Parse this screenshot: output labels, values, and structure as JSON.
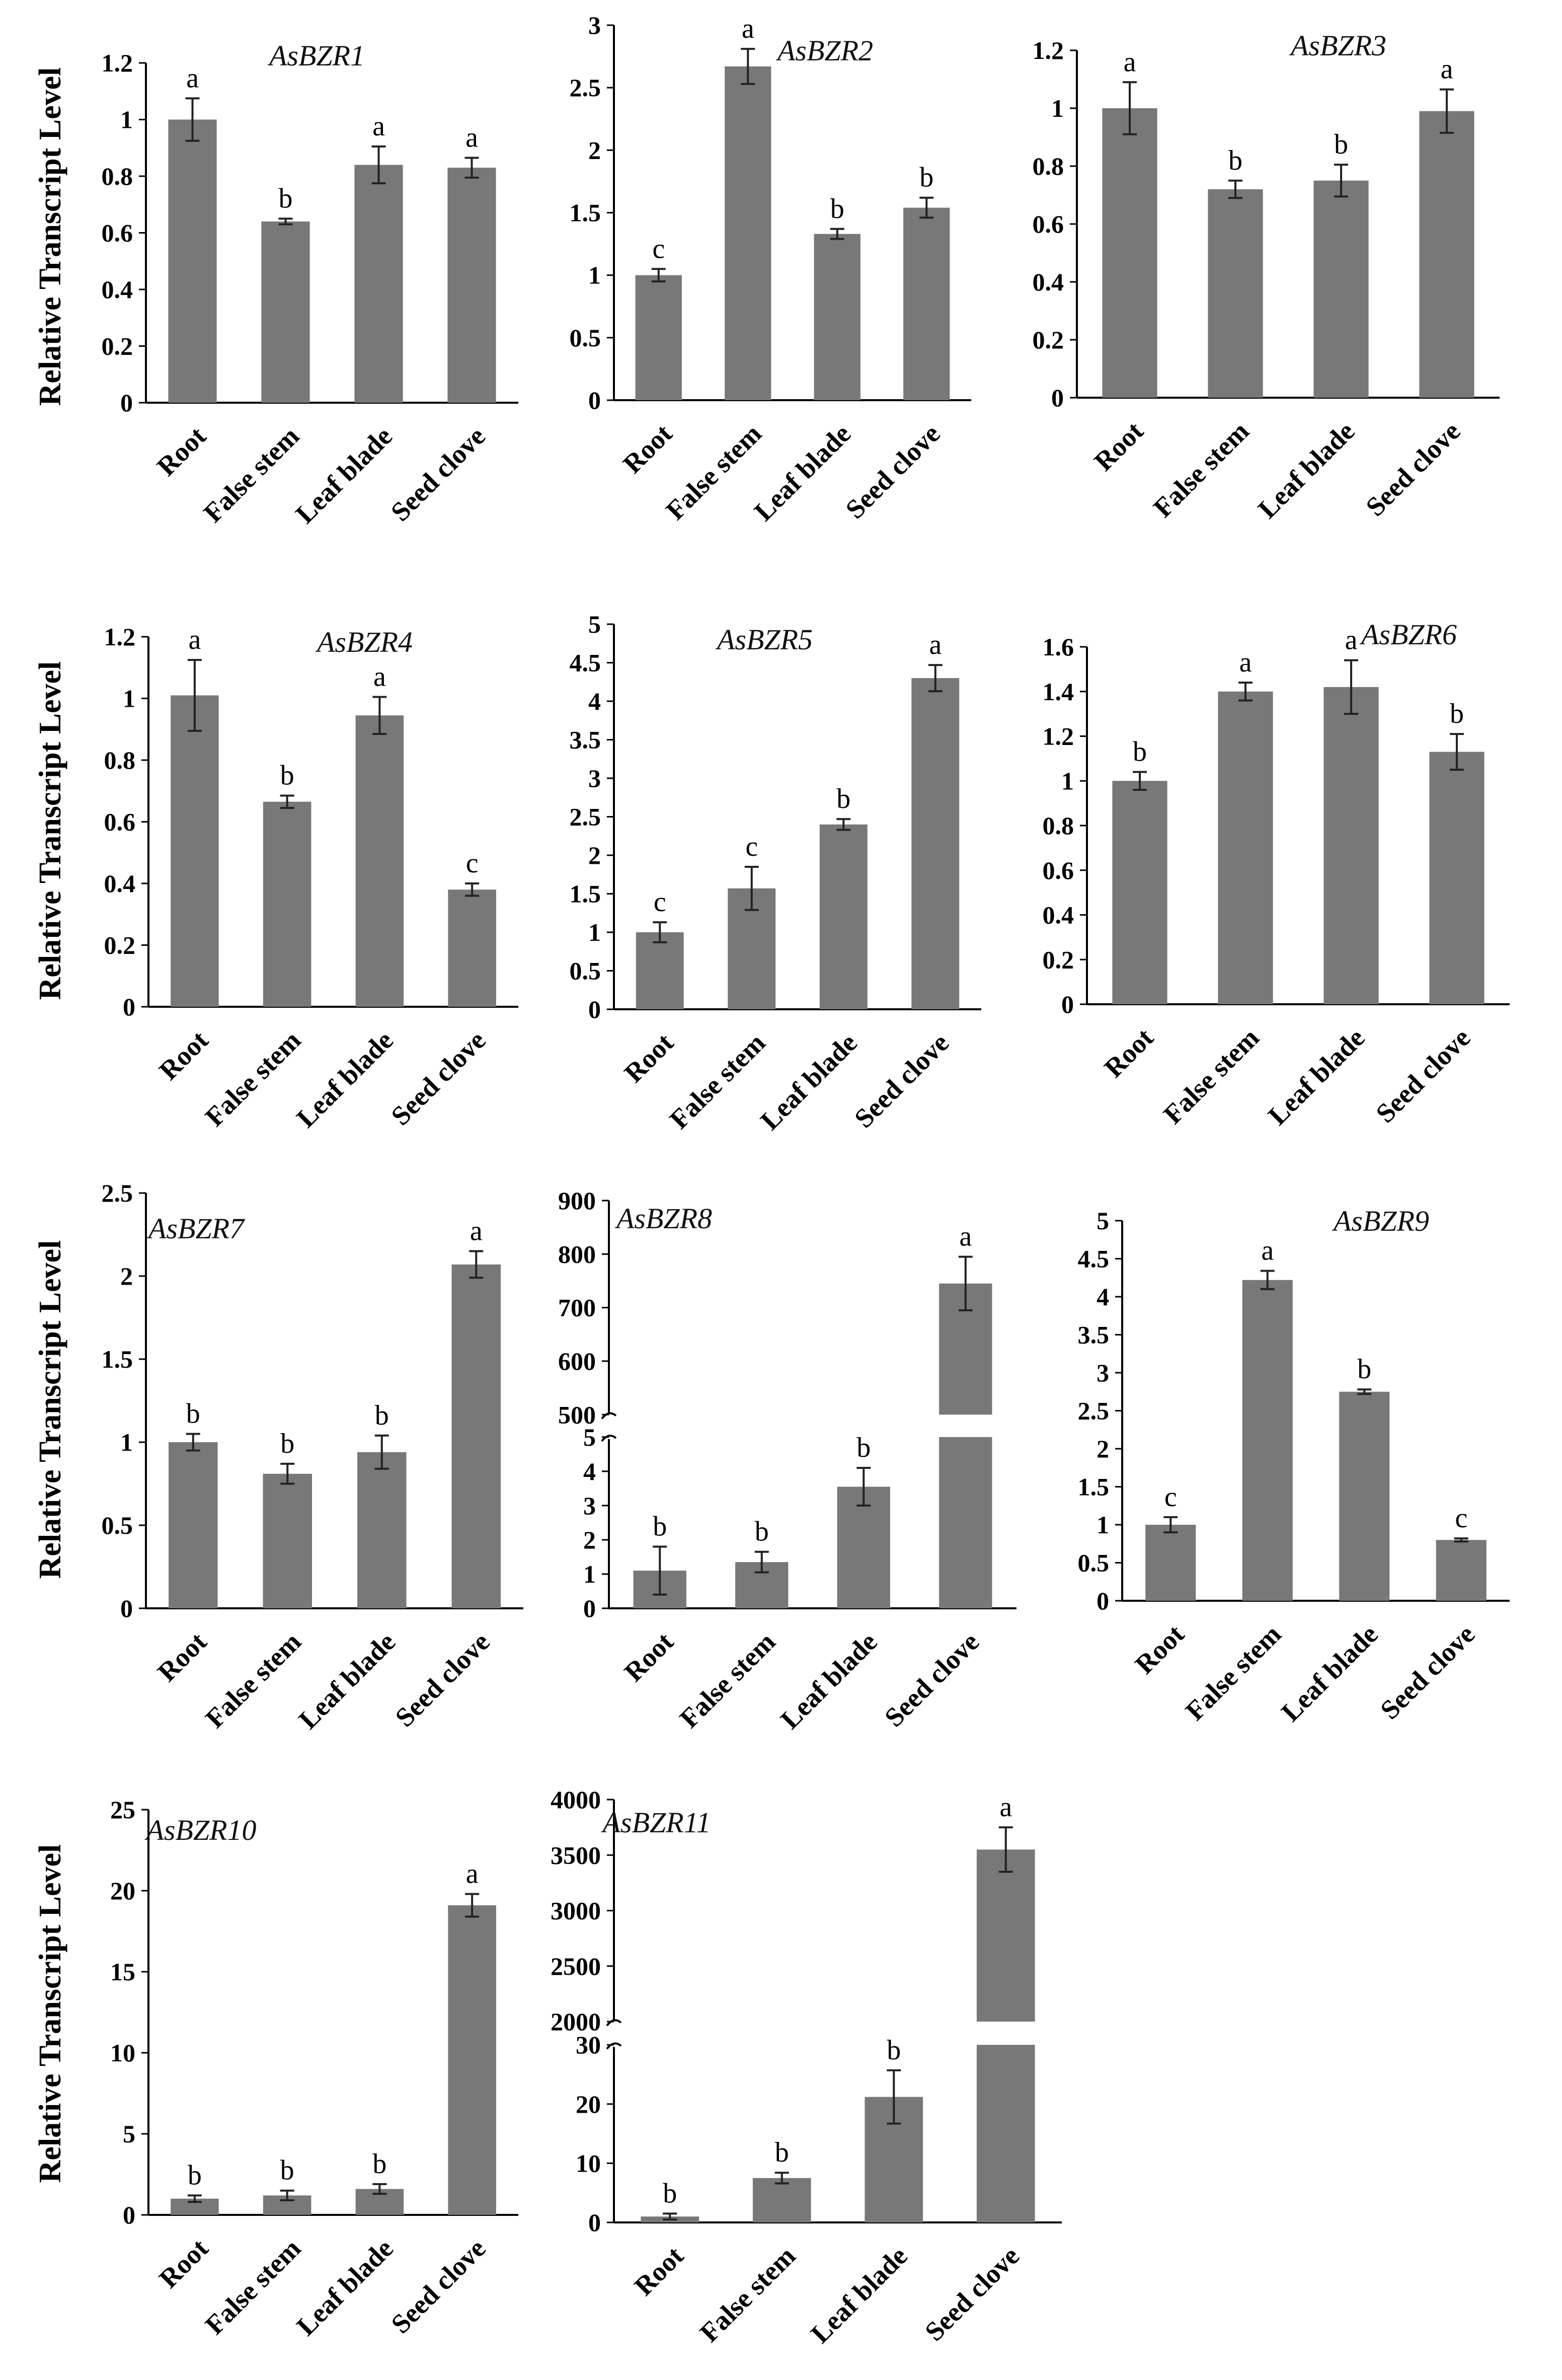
{
  "figure": {
    "y_axis_title": "Relative Transcript Level"
  },
  "chart_data": [
    {
      "type": "bar",
      "title": "AsBZR1",
      "categories": [
        "Root",
        "False stem",
        "Leaf blade",
        "Seed clove"
      ],
      "values": [
        1.0,
        0.64,
        0.84,
        0.83
      ],
      "errors": [
        0.075,
        0.01,
        0.065,
        0.035
      ],
      "significance": [
        "a",
        "b",
        "a",
        "a"
      ],
      "ylim": [
        0,
        1.2
      ],
      "yticks": [
        0,
        0.2,
        0.4,
        0.6,
        0.8,
        1,
        1.2
      ],
      "ytick_labels": [
        "0",
        "0.2",
        "0.4",
        "0.6",
        "0.8",
        "1",
        "1.2"
      ],
      "ylabel": "Relative Transcript Level"
    },
    {
      "type": "bar",
      "title": "AsBZR2",
      "categories": [
        "Root",
        "False stem",
        "Leaf blade",
        "Seed clove"
      ],
      "values": [
        1.0,
        2.67,
        1.33,
        1.54
      ],
      "errors": [
        0.05,
        0.14,
        0.04,
        0.08
      ],
      "significance": [
        "c",
        "a",
        "b",
        "b"
      ],
      "ylim": [
        0,
        3
      ],
      "yticks": [
        0,
        0.5,
        1,
        1.5,
        2,
        2.5,
        3
      ],
      "ytick_labels": [
        "0",
        "0.5",
        "1",
        "1.5",
        "2",
        "2.5",
        "3"
      ],
      "ylabel": ""
    },
    {
      "type": "bar",
      "title": "AsBZR3",
      "categories": [
        "Root",
        "False stem",
        "Leaf blade",
        "Seed clove"
      ],
      "values": [
        1.0,
        0.72,
        0.75,
        0.99
      ],
      "errors": [
        0.09,
        0.03,
        0.055,
        0.075
      ],
      "significance": [
        "a",
        "b",
        "b",
        "a"
      ],
      "ylim": [
        0,
        1.2
      ],
      "yticks": [
        0,
        0.2,
        0.4,
        0.6,
        0.8,
        1,
        1.2
      ],
      "ytick_labels": [
        "0",
        "0.2",
        "0.4",
        "0.6",
        "0.8",
        "1",
        "1.2"
      ],
      "ylabel": ""
    },
    {
      "type": "bar",
      "title": "AsBZR4",
      "categories": [
        "Root",
        "False stem",
        "Leaf blade",
        "Seed clove"
      ],
      "values": [
        1.01,
        0.665,
        0.945,
        0.38
      ],
      "errors": [
        0.115,
        0.02,
        0.06,
        0.02
      ],
      "significance": [
        "a",
        "b",
        "a",
        "c"
      ],
      "ylim": [
        0,
        1.2
      ],
      "yticks": [
        0,
        0.2,
        0.4,
        0.6,
        0.8,
        1,
        1.2
      ],
      "ytick_labels": [
        "0",
        "0.2",
        "0.4",
        "0.6",
        "0.8",
        "1",
        "1.2"
      ],
      "ylabel": "Relative Transcript Level"
    },
    {
      "type": "bar",
      "title": "AsBZR5",
      "categories": [
        "Root",
        "False stem",
        "Leaf blade",
        "Seed clove"
      ],
      "values": [
        1.0,
        1.57,
        2.4,
        4.3
      ],
      "errors": [
        0.13,
        0.28,
        0.07,
        0.17
      ],
      "significance": [
        "c",
        "c",
        "b",
        "a"
      ],
      "ylim": [
        0,
        5
      ],
      "yticks": [
        0,
        0.5,
        1,
        1.5,
        2,
        2.5,
        3,
        3.5,
        4,
        4.5,
        5
      ],
      "ytick_labels": [
        "0",
        "0.5",
        "1",
        "1.5",
        "2",
        "2.5",
        "3",
        "3.5",
        "4",
        "4.5",
        "5"
      ],
      "ylabel": ""
    },
    {
      "type": "bar",
      "title": "AsBZR6",
      "categories": [
        "Root",
        "False stem",
        "Leaf blade",
        "Seed clove"
      ],
      "values": [
        1.0,
        1.4,
        1.42,
        1.13
      ],
      "errors": [
        0.04,
        0.04,
        0.12,
        0.08
      ],
      "significance": [
        "b",
        "a",
        "a",
        "b"
      ],
      "ylim": [
        0,
        1.6
      ],
      "yticks": [
        0,
        0.2,
        0.4,
        0.6,
        0.8,
        1,
        1.2,
        1.4,
        1.6
      ],
      "ytick_labels": [
        "0",
        "0.2",
        "0.4",
        "0.6",
        "0.8",
        "1",
        "1.2",
        "1.4",
        "1.6"
      ],
      "ylabel": ""
    },
    {
      "type": "bar",
      "title": "AsBZR7",
      "categories": [
        "Root",
        "False stem",
        "Leaf blade",
        "Seed clove"
      ],
      "values": [
        1.0,
        0.81,
        0.94,
        2.07
      ],
      "errors": [
        0.05,
        0.06,
        0.1,
        0.08
      ],
      "significance": [
        "b",
        "b",
        "b",
        "a"
      ],
      "ylim": [
        0,
        2.5
      ],
      "yticks": [
        0,
        0.5,
        1,
        1.5,
        2,
        2.5
      ],
      "ytick_labels": [
        "0",
        "0.5",
        "1",
        "1.5",
        "2",
        "2.5"
      ],
      "ylabel": "Relative Transcript Level"
    },
    {
      "type": "bar",
      "title": "AsBZR8",
      "categories": [
        "Root",
        "False stem",
        "Leaf blade",
        "Seed clove"
      ],
      "values": [
        1.1,
        1.35,
        3.55,
        745
      ],
      "errors": [
        0.7,
        0.3,
        0.55,
        50
      ],
      "significance": [
        "b",
        "b",
        "b",
        "a"
      ],
      "ylim": [
        0,
        900
      ],
      "axis_break": [
        5,
        500
      ],
      "yticks": [
        0,
        1,
        2,
        3,
        4,
        5,
        500,
        600,
        700,
        800,
        900
      ],
      "ytick_labels": [
        "0",
        "1",
        "2",
        "3",
        "4",
        "5",
        "500",
        "600",
        "700",
        "800",
        "900"
      ],
      "ylabel": ""
    },
    {
      "type": "bar",
      "title": "AsBZR9",
      "categories": [
        "Root",
        "False stem",
        "Leaf blade",
        "Seed clove"
      ],
      "values": [
        1.0,
        4.22,
        2.75,
        0.8
      ],
      "errors": [
        0.1,
        0.12,
        0.03,
        0.02
      ],
      "significance": [
        "c",
        "a",
        "b",
        "c"
      ],
      "ylim": [
        0,
        5
      ],
      "yticks": [
        0,
        0.5,
        1,
        1.5,
        2,
        2.5,
        3,
        3.5,
        4,
        4.5,
        5
      ],
      "ytick_labels": [
        "0",
        "0.5",
        "1",
        "1.5",
        "2",
        "2.5",
        "3",
        "3.5",
        "4",
        "4.5",
        "5"
      ],
      "ylabel": ""
    },
    {
      "type": "bar",
      "title": "AsBZR10",
      "categories": [
        "Root",
        "False stem",
        "Leaf blade",
        "Seed clove"
      ],
      "values": [
        1.0,
        1.2,
        1.6,
        19.1
      ],
      "errors": [
        0.2,
        0.3,
        0.3,
        0.7
      ],
      "significance": [
        "b",
        "b",
        "b",
        "a"
      ],
      "ylim": [
        0,
        25
      ],
      "yticks": [
        0,
        5,
        10,
        15,
        20,
        25
      ],
      "ytick_labels": [
        "0",
        "5",
        "10",
        "15",
        "20",
        "25"
      ],
      "ylabel": "Relative Transcript Level"
    },
    {
      "type": "bar",
      "title": "AsBZR11",
      "categories": [
        "Root",
        "False stem",
        "Leaf blade",
        "Seed clove"
      ],
      "values": [
        1.0,
        7.5,
        21.2,
        3550
      ],
      "errors": [
        0.5,
        0.9,
        4.5,
        200
      ],
      "significance": [
        "b",
        "b",
        "b",
        "a"
      ],
      "ylim": [
        0,
        4000
      ],
      "axis_break": [
        30,
        2000
      ],
      "yticks": [
        0,
        10,
        20,
        30,
        2000,
        2500,
        3000,
        3500,
        4000
      ],
      "ytick_labels": [
        "0",
        "10",
        "20",
        "30",
        "2000",
        "2500",
        "3000",
        "3500",
        "4000"
      ],
      "ylabel": ""
    }
  ]
}
